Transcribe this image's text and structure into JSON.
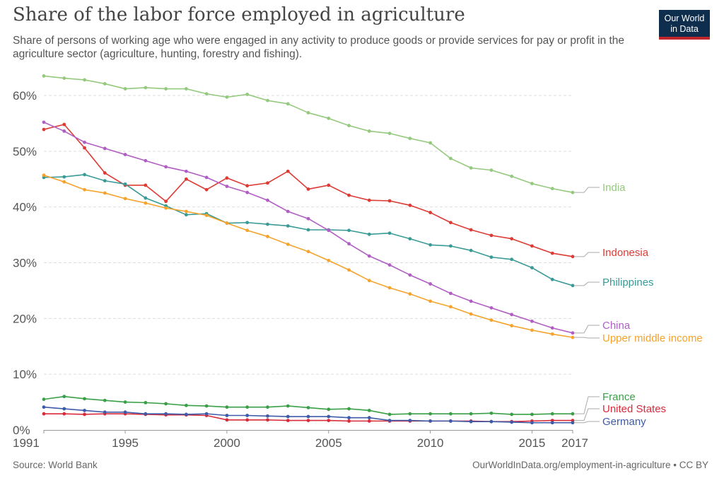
{
  "header": {
    "title": "Share of the labor force employed in agriculture",
    "subtitle": "Share of persons of working age who were engaged in any activity to produce goods or provide services for pay or profit in the agriculture sector (agriculture, hunting, forestry and fishing).",
    "logo_line1": "Our World",
    "logo_line2": "in Data"
  },
  "footer": {
    "source": "Source: World Bank",
    "credit": "OurWorldInData.org/employment-in-agriculture • CC BY"
  },
  "chart_data": {
    "type": "line",
    "title": "Share of the labor force employed in agriculture",
    "xlabel": "",
    "ylabel": "",
    "xlim": [
      1991,
      2017
    ],
    "ylim": [
      0,
      60
    ],
    "grid": true,
    "legend": "right-end-labels",
    "y_unit": "%",
    "x_ticks": [
      1991,
      1995,
      2000,
      2005,
      2010,
      2015,
      2017
    ],
    "y_ticks": [
      0,
      10,
      20,
      30,
      40,
      50,
      60
    ],
    "x": [
      1991,
      1992,
      1993,
      1994,
      1995,
      1996,
      1997,
      1998,
      1999,
      2000,
      2001,
      2002,
      2003,
      2004,
      2005,
      2006,
      2007,
      2008,
      2009,
      2010,
      2011,
      2012,
      2013,
      2014,
      2015,
      2016,
      2017
    ],
    "series": [
      {
        "name": "India",
        "color": "#94c97e",
        "values": [
          63.5,
          63.1,
          62.8,
          62.1,
          61.2,
          61.4,
          61.2,
          61.2,
          60.3,
          59.7,
          60.2,
          59.1,
          58.5,
          56.9,
          55.9,
          54.6,
          53.6,
          53.2,
          52.3,
          51.5,
          48.7,
          47.0,
          46.6,
          45.5,
          44.2,
          43.3,
          42.6
        ]
      },
      {
        "name": "Indonesia",
        "color": "#dd3b33",
        "values": [
          53.9,
          54.8,
          50.6,
          46.1,
          43.9,
          43.9,
          41.0,
          45.0,
          43.1,
          45.2,
          43.8,
          44.3,
          46.4,
          43.2,
          43.9,
          42.1,
          41.2,
          41.1,
          40.3,
          39.0,
          37.2,
          35.9,
          34.9,
          34.3,
          33.0,
          31.7,
          31.1
        ]
      },
      {
        "name": "Philippines",
        "color": "#3a9a96",
        "values": [
          45.3,
          45.4,
          45.8,
          44.7,
          44.1,
          41.6,
          40.2,
          38.6,
          38.8,
          37.1,
          37.2,
          36.9,
          36.6,
          35.9,
          35.9,
          35.8,
          35.1,
          35.3,
          34.3,
          33.2,
          33.0,
          32.2,
          31.0,
          30.6,
          29.1,
          27.0,
          25.9
        ]
      },
      {
        "name": "China",
        "color": "#b15ec4",
        "values": [
          55.2,
          53.6,
          51.6,
          50.5,
          49.4,
          48.3,
          47.2,
          46.4,
          45.3,
          43.7,
          42.6,
          41.2,
          39.2,
          37.9,
          35.8,
          33.4,
          31.2,
          29.6,
          27.8,
          26.2,
          24.5,
          23.1,
          21.9,
          20.7,
          19.5,
          18.3,
          17.4
        ]
      },
      {
        "name": "Upper middle income",
        "color": "#f5a32c",
        "values": [
          45.7,
          44.5,
          43.1,
          42.5,
          41.5,
          40.7,
          39.8,
          39.2,
          38.5,
          37.1,
          35.8,
          34.7,
          33.3,
          32.0,
          30.4,
          28.7,
          26.8,
          25.5,
          24.4,
          23.1,
          22.1,
          20.8,
          19.7,
          18.7,
          17.9,
          17.2,
          16.6
        ]
      },
      {
        "name": "France",
        "color": "#3aa048",
        "values": [
          5.5,
          6.0,
          5.6,
          5.3,
          5.0,
          4.9,
          4.7,
          4.4,
          4.3,
          4.1,
          4.1,
          4.1,
          4.3,
          4.0,
          3.7,
          3.8,
          3.5,
          2.8,
          2.9,
          2.9,
          2.9,
          2.9,
          3.0,
          2.8,
          2.8,
          2.9,
          2.9
        ]
      },
      {
        "name": "United States",
        "color": "#d92b3a",
        "values": [
          2.9,
          2.9,
          2.8,
          2.9,
          2.9,
          2.8,
          2.7,
          2.7,
          2.6,
          1.8,
          1.8,
          1.8,
          1.7,
          1.7,
          1.7,
          1.6,
          1.6,
          1.6,
          1.6,
          1.6,
          1.6,
          1.6,
          1.5,
          1.5,
          1.6,
          1.7,
          1.7
        ]
      },
      {
        "name": "Germany",
        "color": "#3d5ba9",
        "values": [
          4.1,
          3.8,
          3.5,
          3.2,
          3.2,
          2.9,
          2.9,
          2.8,
          2.9,
          2.6,
          2.6,
          2.5,
          2.4,
          2.4,
          2.4,
          2.2,
          2.2,
          1.7,
          1.7,
          1.6,
          1.6,
          1.5,
          1.5,
          1.4,
          1.3,
          1.3,
          1.3
        ]
      }
    ]
  }
}
